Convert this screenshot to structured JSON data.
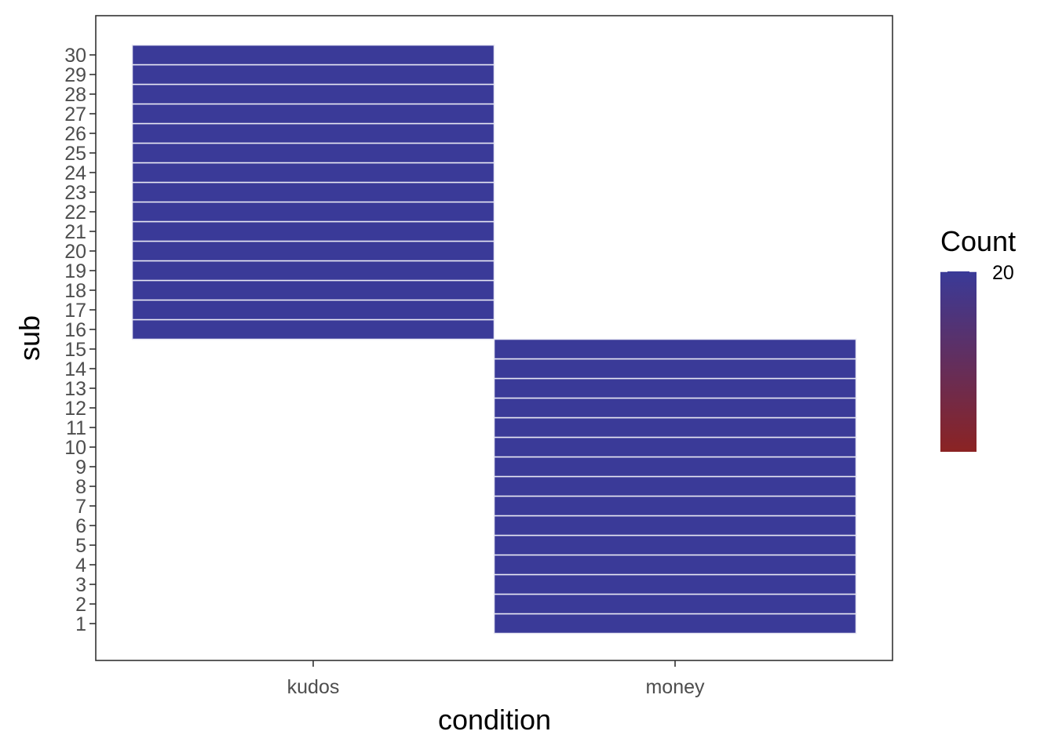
{
  "chart_data": {
    "type": "heatmap",
    "xlabel": "condition",
    "ylabel": "sub",
    "x_categories": [
      "kudos",
      "money"
    ],
    "y_categories": [
      "1",
      "2",
      "3",
      "4",
      "5",
      "6",
      "7",
      "8",
      "9",
      "10",
      "11",
      "12",
      "13",
      "14",
      "15",
      "16",
      "17",
      "18",
      "19",
      "20",
      "21",
      "22",
      "23",
      "24",
      "25",
      "26",
      "27",
      "28",
      "29",
      "30"
    ],
    "cells": [
      {
        "x": "money",
        "y": "1",
        "value": 20
      },
      {
        "x": "money",
        "y": "2",
        "value": 20
      },
      {
        "x": "money",
        "y": "3",
        "value": 20
      },
      {
        "x": "money",
        "y": "4",
        "value": 20
      },
      {
        "x": "money",
        "y": "5",
        "value": 20
      },
      {
        "x": "money",
        "y": "6",
        "value": 20
      },
      {
        "x": "money",
        "y": "7",
        "value": 20
      },
      {
        "x": "money",
        "y": "8",
        "value": 20
      },
      {
        "x": "money",
        "y": "9",
        "value": 20
      },
      {
        "x": "money",
        "y": "10",
        "value": 20
      },
      {
        "x": "money",
        "y": "11",
        "value": 20
      },
      {
        "x": "money",
        "y": "12",
        "value": 20
      },
      {
        "x": "money",
        "y": "13",
        "value": 20
      },
      {
        "x": "money",
        "y": "14",
        "value": 20
      },
      {
        "x": "money",
        "y": "15",
        "value": 20
      },
      {
        "x": "kudos",
        "y": "16",
        "value": 20
      },
      {
        "x": "kudos",
        "y": "17",
        "value": 20
      },
      {
        "x": "kudos",
        "y": "18",
        "value": 20
      },
      {
        "x": "kudos",
        "y": "19",
        "value": 20
      },
      {
        "x": "kudos",
        "y": "20",
        "value": 20
      },
      {
        "x": "kudos",
        "y": "21",
        "value": 20
      },
      {
        "x": "kudos",
        "y": "22",
        "value": 20
      },
      {
        "x": "kudos",
        "y": "23",
        "value": 20
      },
      {
        "x": "kudos",
        "y": "24",
        "value": 20
      },
      {
        "x": "kudos",
        "y": "25",
        "value": 20
      },
      {
        "x": "kudos",
        "y": "26",
        "value": 20
      },
      {
        "x": "kudos",
        "y": "27",
        "value": 20
      },
      {
        "x": "kudos",
        "y": "28",
        "value": 20
      },
      {
        "x": "kudos",
        "y": "29",
        "value": 20
      },
      {
        "x": "kudos",
        "y": "30",
        "value": 20
      }
    ],
    "legend": {
      "title": "Count",
      "labels": [
        "20"
      ],
      "position": "right",
      "color_high": "#3a3a98",
      "color_low": "#8b2323"
    },
    "tile_border_color": "#e8e8f4",
    "grid": false
  }
}
